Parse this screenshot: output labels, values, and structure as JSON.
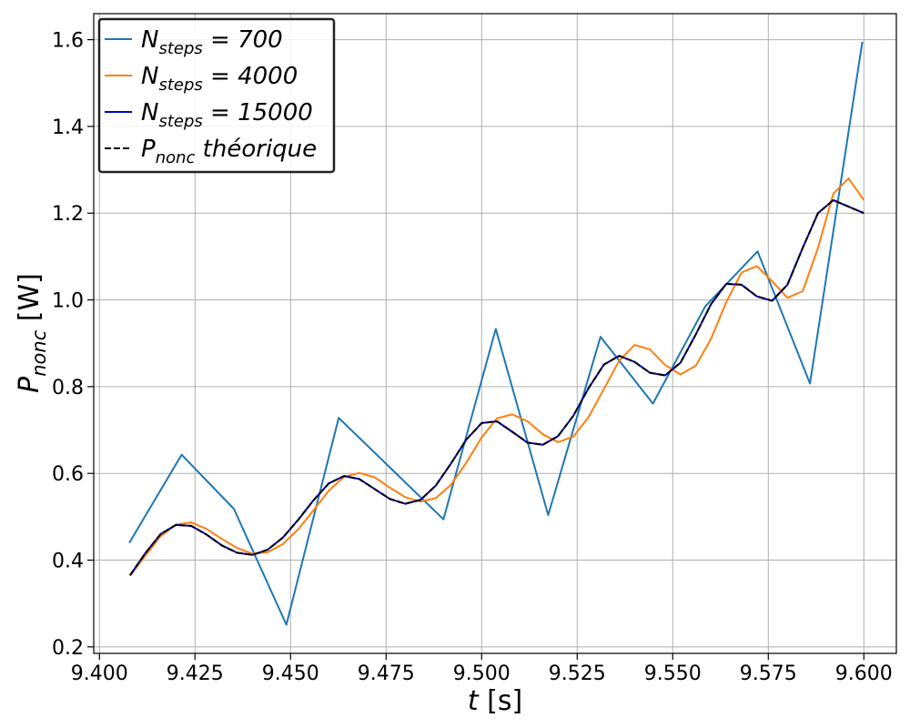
{
  "chart_data": {
    "type": "line",
    "xlabel": {
      "var": "t",
      "unit": " [s]"
    },
    "ylabel": {
      "var": "P",
      "sub": "nonc",
      "unit": " [W]"
    },
    "xlim": [
      9.3985,
      9.6085
    ],
    "ylim": [
      0.185,
      1.66
    ],
    "x_ticks": [
      9.4,
      9.425,
      9.45,
      9.475,
      9.5,
      9.525,
      9.55,
      9.575,
      9.6
    ],
    "x_tick_labels": [
      "9.400",
      "9.425",
      "9.450",
      "9.475",
      "9.500",
      "9.525",
      "9.550",
      "9.575",
      "9.600"
    ],
    "y_ticks": [
      0.2,
      0.4,
      0.6,
      0.8,
      1.0,
      1.2,
      1.4,
      1.6
    ],
    "y_tick_labels": [
      "0.2",
      "0.4",
      "0.6",
      "0.8",
      "1.0",
      "1.2",
      "1.4",
      "1.6"
    ],
    "grid": true,
    "legend_position": "top-left",
    "series": [
      {
        "name_main": "N",
        "name_sub": "steps",
        "name_rest": " = 700",
        "color": "#1f77b4",
        "dash": "solid",
        "x": [
          9.4078,
          9.4215,
          9.4352,
          9.4489,
          9.4626,
          9.4763,
          9.49,
          9.5037,
          9.5174,
          9.5311,
          9.5448,
          9.5585,
          9.5722,
          9.5859,
          9.5996
        ],
        "y": [
          0.44,
          0.643,
          0.518,
          0.251,
          0.728,
          0.611,
          0.494,
          0.933,
          0.504,
          0.915,
          0.761,
          0.985,
          1.112,
          0.807,
          1.595
        ]
      },
      {
        "name_main": "N",
        "name_sub": "steps",
        "name_rest": " = 4000",
        "color": "#ff7f0e",
        "dash": "solid",
        "x": [
          9.408,
          9.412,
          9.416,
          9.42,
          9.424,
          9.428,
          9.432,
          9.436,
          9.44,
          9.444,
          9.448,
          9.452,
          9.456,
          9.46,
          9.464,
          9.468,
          9.472,
          9.476,
          9.48,
          9.484,
          9.488,
          9.492,
          9.496,
          9.5,
          9.504,
          9.508,
          9.512,
          9.516,
          9.52,
          9.524,
          9.528,
          9.532,
          9.536,
          9.54,
          9.544,
          9.548,
          9.552,
          9.556,
          9.56,
          9.564,
          9.568,
          9.572,
          9.576,
          9.58,
          9.584,
          9.588,
          9.592,
          9.596,
          9.6
        ],
        "y": [
          0.364,
          0.41,
          0.455,
          0.482,
          0.487,
          0.472,
          0.449,
          0.428,
          0.415,
          0.418,
          0.437,
          0.471,
          0.515,
          0.56,
          0.592,
          0.601,
          0.591,
          0.567,
          0.545,
          0.535,
          0.543,
          0.574,
          0.625,
          0.683,
          0.727,
          0.736,
          0.72,
          0.69,
          0.672,
          0.685,
          0.73,
          0.795,
          0.86,
          0.896,
          0.886,
          0.85,
          0.828,
          0.848,
          0.91,
          0.995,
          1.063,
          1.078,
          1.043,
          1.005,
          1.02,
          1.12,
          1.245,
          1.28,
          1.23
        ]
      },
      {
        "name_main": "N",
        "name_sub": "steps",
        "name_rest": " = 15000",
        "color": "#0000cc",
        "dash": "solid",
        "x": [
          9.408,
          9.412,
          9.416,
          9.42,
          9.424,
          9.428,
          9.432,
          9.436,
          9.44,
          9.444,
          9.448,
          9.452,
          9.456,
          9.46,
          9.464,
          9.468,
          9.472,
          9.476,
          9.48,
          9.484,
          9.488,
          9.492,
          9.496,
          9.5,
          9.504,
          9.508,
          9.512,
          9.516,
          9.52,
          9.524,
          9.528,
          9.532,
          9.536,
          9.54,
          9.544,
          9.548,
          9.552,
          9.556,
          9.56,
          9.564,
          9.568,
          9.572,
          9.576,
          9.58,
          9.584,
          9.588,
          9.592,
          9.596,
          9.6
        ],
        "y": [
          0.365,
          0.416,
          0.46,
          0.481,
          0.479,
          0.459,
          0.434,
          0.417,
          0.412,
          0.424,
          0.452,
          0.493,
          0.538,
          0.577,
          0.594,
          0.587,
          0.564,
          0.541,
          0.53,
          0.539,
          0.572,
          0.623,
          0.678,
          0.716,
          0.72,
          0.696,
          0.671,
          0.666,
          0.686,
          0.733,
          0.797,
          0.851,
          0.871,
          0.857,
          0.832,
          0.826,
          0.855,
          0.92,
          0.99,
          1.037,
          1.035,
          1.008,
          0.998,
          1.035,
          1.12,
          1.2,
          1.23,
          1.215,
          1.2
        ]
      },
      {
        "name_main": "P",
        "name_sub": "nonc",
        "name_rest": " théorique",
        "color": "#000000",
        "dash": "dashed",
        "x": [
          9.408,
          9.412,
          9.416,
          9.42,
          9.424,
          9.428,
          9.432,
          9.436,
          9.44,
          9.444,
          9.448,
          9.452,
          9.456,
          9.46,
          9.464,
          9.468,
          9.472,
          9.476,
          9.48,
          9.484,
          9.488,
          9.492,
          9.496,
          9.5,
          9.504,
          9.508,
          9.512,
          9.516,
          9.52,
          9.524,
          9.528,
          9.532,
          9.536,
          9.54,
          9.544,
          9.548,
          9.552,
          9.556,
          9.56,
          9.564,
          9.568,
          9.572,
          9.576,
          9.58,
          9.584,
          9.588,
          9.592,
          9.596,
          9.6
        ],
        "y": [
          0.365,
          0.416,
          0.46,
          0.481,
          0.479,
          0.459,
          0.434,
          0.417,
          0.412,
          0.424,
          0.452,
          0.493,
          0.538,
          0.577,
          0.594,
          0.587,
          0.564,
          0.541,
          0.53,
          0.539,
          0.572,
          0.623,
          0.678,
          0.716,
          0.72,
          0.696,
          0.671,
          0.666,
          0.686,
          0.733,
          0.797,
          0.851,
          0.871,
          0.857,
          0.832,
          0.826,
          0.855,
          0.92,
          0.99,
          1.037,
          1.035,
          1.008,
          0.998,
          1.035,
          1.12,
          1.2,
          1.23,
          1.215,
          1.2
        ]
      }
    ]
  }
}
